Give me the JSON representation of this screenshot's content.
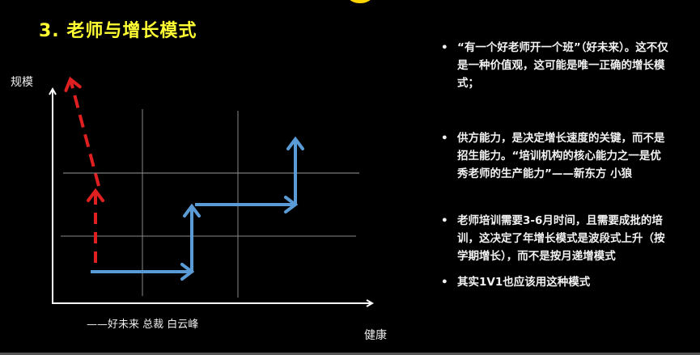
{
  "title": "3.  老师与增长模式",
  "diagram": {
    "y_axis_label": "规模",
    "x_axis_label": "健康",
    "attribution": "——好未来 总裁 白云峰",
    "colors": {
      "steady_growth": "#5b9bd5",
      "rapid_growth": "#e02020",
      "axes": "#ffffff",
      "grid": "#888888"
    }
  },
  "bullets": [
    "“有一个好老师开一个班”（好未来）。这不仅是一种价值观，这可能是唯一正确的增长模式；",
    "供方能力，是决定增长速度的关键，而不是招生能力。“培训机构的核心能力之一是优秀老师的生产能力”——新东方 小狼",
    "老师培训需要3-6月时间，且需要成批的培训，这决定了年增长模式是波段式上升（按学期增长），而不是按月递增模式",
    "其实1V1也应该用这种模式"
  ]
}
